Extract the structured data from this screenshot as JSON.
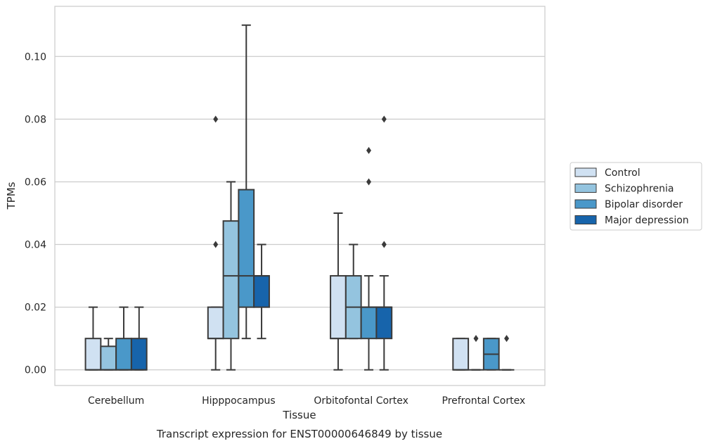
{
  "chart_data": {
    "type": "box",
    "xlabel": "Tissue",
    "ylabel": "TPMs",
    "caption": "Transcript expression for ENST00000646849 by tissue",
    "ylim": [
      -0.005,
      0.116
    ],
    "yticks": [
      "0.00",
      "0.02",
      "0.04",
      "0.06",
      "0.08",
      "0.10"
    ],
    "grid": true,
    "legend_position": "right",
    "categories": [
      "Cerebellum",
      "Hipppocampus",
      "Orbitofontal Cortex",
      "Prefrontal Cortex"
    ],
    "series": [
      {
        "name": "Control",
        "color": "#d0e1f2",
        "boxes": [
          {
            "whislo": 0.0,
            "q1": 0.0,
            "med": 0.0,
            "q3": 0.01,
            "whishi": 0.02,
            "fliers": []
          },
          {
            "whislo": 0.0,
            "q1": 0.01,
            "med": 0.01,
            "q3": 0.02,
            "whishi": 0.02,
            "fliers": [
              0.04,
              0.08
            ]
          },
          {
            "whislo": 0.0,
            "q1": 0.01,
            "med": 0.01,
            "q3": 0.03,
            "whishi": 0.05,
            "fliers": []
          },
          {
            "whislo": 0.0,
            "q1": 0.0,
            "med": 0.0,
            "q3": 0.01,
            "whishi": 0.01,
            "fliers": []
          }
        ]
      },
      {
        "name": "Schizophrenia",
        "color": "#94c4df",
        "boxes": [
          {
            "whislo": 0.0,
            "q1": 0.0,
            "med": 0.0,
            "q3": 0.0075,
            "whishi": 0.01,
            "fliers": []
          },
          {
            "whislo": 0.0,
            "q1": 0.01,
            "med": 0.03,
            "q3": 0.0475,
            "whishi": 0.06,
            "fliers": []
          },
          {
            "whislo": 0.01,
            "q1": 0.01,
            "med": 0.02,
            "q3": 0.03,
            "whishi": 0.04,
            "fliers": []
          },
          {
            "whislo": 0.0,
            "q1": 0.0,
            "med": 0.0,
            "q3": 0.0,
            "whishi": 0.0,
            "fliers": [
              0.01
            ]
          }
        ]
      },
      {
        "name": "Bipolar disorder",
        "color": "#4a98c9",
        "boxes": [
          {
            "whislo": 0.0,
            "q1": 0.0,
            "med": 0.0,
            "q3": 0.01,
            "whishi": 0.02,
            "fliers": []
          },
          {
            "whislo": 0.01,
            "q1": 0.02,
            "med": 0.03,
            "q3": 0.0575,
            "whishi": 0.11,
            "fliers": []
          },
          {
            "whislo": 0.0,
            "q1": 0.01,
            "med": 0.02,
            "q3": 0.02,
            "whishi": 0.03,
            "fliers": [
              0.06,
              0.07
            ]
          },
          {
            "whislo": 0.0,
            "q1": 0.0,
            "med": 0.005,
            "q3": 0.01,
            "whishi": 0.01,
            "fliers": []
          }
        ]
      },
      {
        "name": "Major depression",
        "color": "#1764ab",
        "boxes": [
          {
            "whislo": 0.0,
            "q1": 0.0,
            "med": 0.0,
            "q3": 0.01,
            "whishi": 0.02,
            "fliers": []
          },
          {
            "whislo": 0.01,
            "q1": 0.02,
            "med": 0.03,
            "q3": 0.03,
            "whishi": 0.04,
            "fliers": []
          },
          {
            "whislo": 0.0,
            "q1": 0.01,
            "med": 0.02,
            "q3": 0.02,
            "whishi": 0.03,
            "fliers": [
              0.04,
              0.08
            ]
          },
          {
            "whislo": 0.0,
            "q1": 0.0,
            "med": 0.0,
            "q3": 0.0,
            "whishi": 0.0,
            "fliers": [
              0.01
            ]
          }
        ]
      }
    ]
  }
}
